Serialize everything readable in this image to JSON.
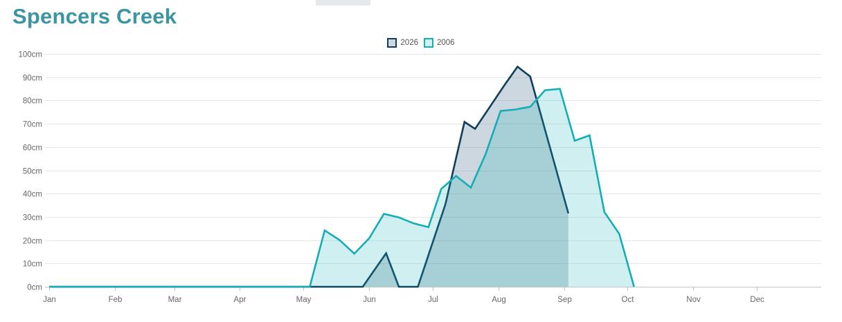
{
  "page": {
    "title": "Spencers Creek"
  },
  "chart_data": {
    "type": "area",
    "title": "",
    "xlabel": "",
    "ylabel": "",
    "x_unit": "day_of_year",
    "xlim": [
      1,
      365
    ],
    "ylim": [
      0,
      100
    ],
    "y_ticks": [
      0,
      10,
      20,
      30,
      40,
      50,
      60,
      70,
      80,
      90,
      100
    ],
    "y_tick_labels": [
      "0cm",
      "10cm",
      "20cm",
      "30cm",
      "40cm",
      "50cm",
      "60cm",
      "70cm",
      "80cm",
      "90cm",
      "100cm"
    ],
    "x_ticks": [
      {
        "label": "Jan",
        "day": 1
      },
      {
        "label": "Feb",
        "day": 32
      },
      {
        "label": "Mar",
        "day": 60
      },
      {
        "label": "Apr",
        "day": 91
      },
      {
        "label": "May",
        "day": 121
      },
      {
        "label": "Jun",
        "day": 152
      },
      {
        "label": "Jul",
        "day": 182
      },
      {
        "label": "Aug",
        "day": 213
      },
      {
        "label": "Sep",
        "day": 244
      },
      {
        "label": "Oct",
        "day": 274
      },
      {
        "label": "Nov",
        "day": 305
      },
      {
        "label": "Dec",
        "day": 335
      }
    ],
    "grid": true,
    "legend_position": "top-center",
    "series": [
      {
        "name": "2026",
        "line_color": "#0f3d5c",
        "fill_color": "rgba(72,110,140,0.28)",
        "points": [
          [
            1,
            0
          ],
          [
            149,
            0
          ],
          [
            160,
            14.4
          ],
          [
            166,
            0
          ],
          [
            175,
            0
          ],
          [
            188,
            35.5
          ],
          [
            197,
            70.8
          ],
          [
            202,
            67.8
          ],
          [
            216,
            86.8
          ],
          [
            222,
            94.5
          ],
          [
            228,
            90.3
          ],
          [
            246,
            31.5
          ]
        ]
      },
      {
        "name": "2006",
        "line_color": "#14adb5",
        "fill_color": "rgba(20,173,181,0.20)",
        "points": [
          [
            1,
            0
          ],
          [
            124,
            0
          ],
          [
            131,
            24.2
          ],
          [
            138,
            20.1
          ],
          [
            145,
            14.2
          ],
          [
            152,
            20.8
          ],
          [
            159,
            31.3
          ],
          [
            166,
            29.8
          ],
          [
            173,
            27.2
          ],
          [
            180,
            25.6
          ],
          [
            186,
            42.0
          ],
          [
            193,
            47.6
          ],
          [
            200,
            42.6
          ],
          [
            207,
            57.1
          ],
          [
            214,
            75.5
          ],
          [
            221,
            76.1
          ],
          [
            228,
            77.3
          ],
          [
            235,
            84.4
          ],
          [
            242,
            85.0
          ],
          [
            249,
            62.7
          ],
          [
            256,
            65.0
          ],
          [
            263,
            32.1
          ],
          [
            270,
            22.7
          ],
          [
            277,
            0
          ]
        ]
      }
    ]
  }
}
